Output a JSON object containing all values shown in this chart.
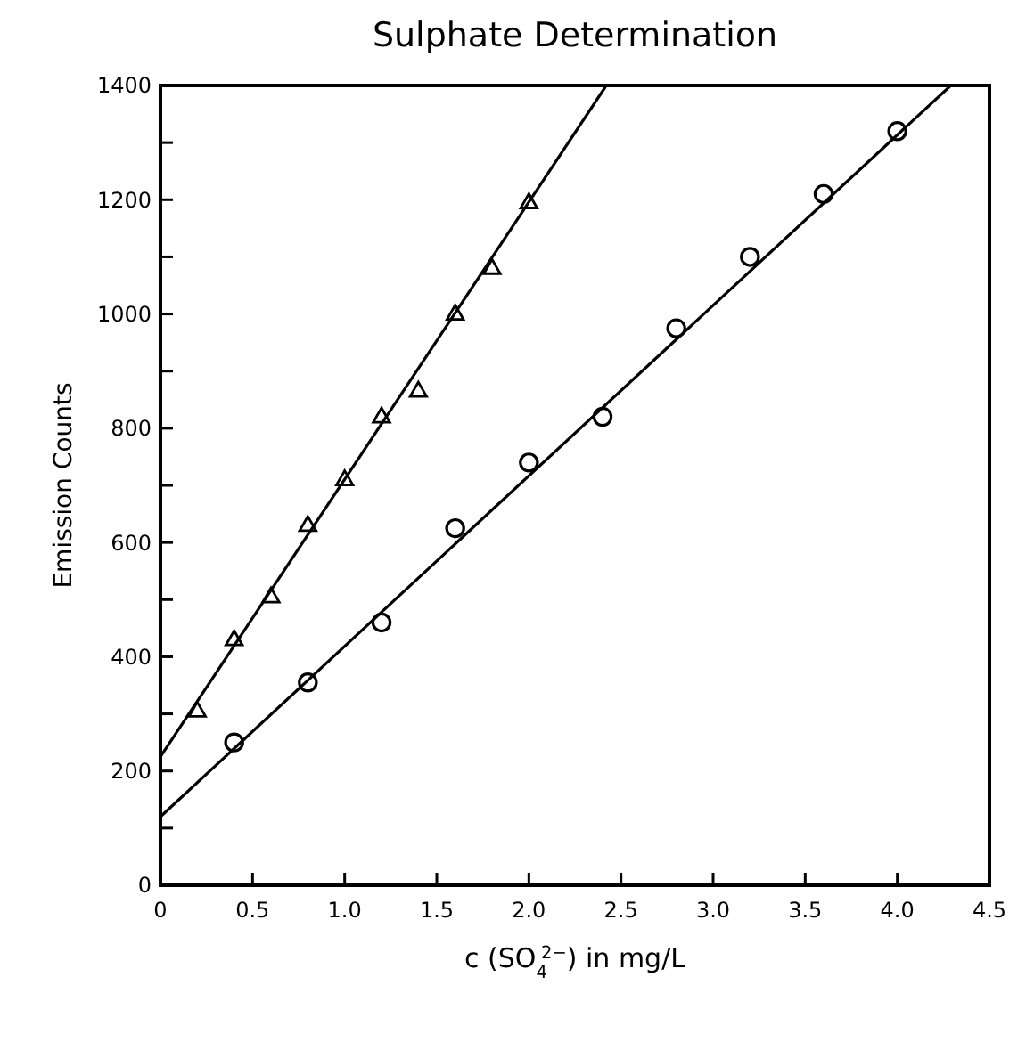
{
  "chart_data": {
    "type": "scatter",
    "title": "Sulphate Determination",
    "xlabel": "c (SO$_{4}$$^{2−}$) in mg/L",
    "ylabel": "Emission Counts",
    "xlim": [
      0,
      4.5
    ],
    "xticks": [
      {
        "value": 0,
        "label": "0"
      },
      0.5,
      {
        "value": 1,
        "label": "1.0"
      },
      1.5,
      {
        "value": 2,
        "label": "2.0"
      },
      2.5,
      {
        "value": 3,
        "label": "3.0"
      },
      3.5,
      {
        "value": 4,
        "label": "4.0"
      },
      4.5
    ],
    "ylim": [
      0,
      1400
    ],
    "yticks": [
      0,
      {
        "value": 100,
        "label": null
      },
      200,
      {
        "value": 300,
        "label": null
      },
      400,
      {
        "value": 500,
        "label": null
      },
      600,
      {
        "value": 700,
        "label": null
      },
      800,
      {
        "value": 900,
        "label": null
      },
      1000,
      {
        "value": 1100,
        "label": null
      },
      1200,
      {
        "value": 1300,
        "label": null
      },
      1400
    ],
    "grid": false,
    "series": [
      {
        "marker": "triangle",
        "color": "#000000",
        "x": [
          0.2,
          0.4,
          0.6,
          0.8,
          1.0,
          1.2,
          1.4,
          1.6,
          1.8,
          2.0
        ],
        "values": [
          305,
          430,
          505,
          630,
          710,
          820,
          865,
          1000,
          1080,
          1195
        ]
      },
      {
        "marker": "circle",
        "color": "#000000",
        "x": [
          0.4,
          0.8,
          1.2,
          1.6,
          2.0,
          2.4,
          2.8,
          3.2,
          3.6,
          4.0
        ],
        "values": [
          250,
          355,
          460,
          625,
          740,
          820,
          975,
          1100,
          1210,
          1320
        ]
      },
      {
        "type": "line",
        "marker": "none",
        "line_style": "solid",
        "color": "#000000",
        "x": [
          0,
          2.42
        ],
        "values": [
          225,
          1400
        ]
      },
      {
        "type": "line",
        "marker": "none",
        "line_style": "solid",
        "color": "#000000",
        "x": [
          0,
          4.29
        ],
        "values": [
          120,
          1400
        ]
      }
    ]
  }
}
